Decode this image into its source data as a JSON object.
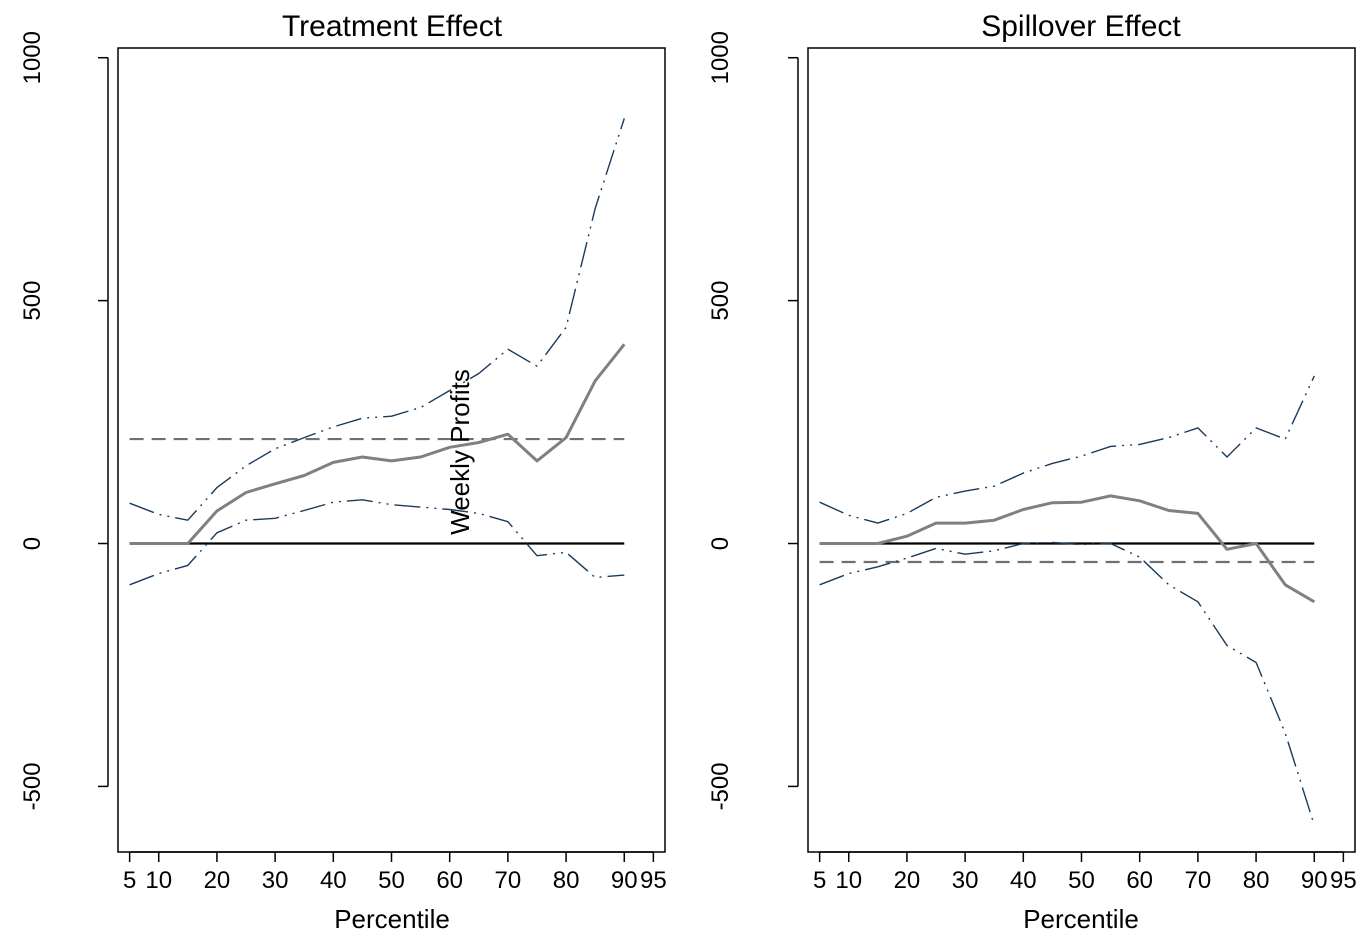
{
  "figure": {
    "shared_ylabel": "Weekly Profits"
  },
  "colors": {
    "estimate": "#808080",
    "ci_band": "#1a3a5c",
    "mean_effect": "#707070",
    "zero_line": "#000000"
  },
  "chart_data": [
    {
      "type": "line",
      "title": "Treatment Effect",
      "xlabel": "Percentile",
      "ylabel": "Weekly Profits",
      "x_ticks": [
        5,
        10,
        20,
        30,
        40,
        50,
        60,
        70,
        80,
        90,
        95
      ],
      "x_tick_labels": [
        "5",
        "10",
        "20",
        "30",
        "40",
        "50",
        "60",
        "70",
        "80",
        "90",
        "95"
      ],
      "y_ticks": [
        -500,
        0,
        500,
        1000
      ],
      "y_tick_labels": [
        "-500",
        "0",
        "500",
        "1000"
      ],
      "xlim": [
        3,
        97
      ],
      "ylim": [
        -635,
        1020
      ],
      "x": [
        5,
        10,
        15,
        20,
        25,
        30,
        35,
        40,
        45,
        50,
        55,
        60,
        65,
        70,
        75,
        80,
        85,
        90
      ],
      "series": [
        {
          "role": "estimate",
          "values": [
            0,
            0,
            0,
            67,
            105,
            123,
            140,
            167,
            178,
            170,
            178,
            198,
            208,
            225,
            170,
            218,
            335,
            410
          ]
        },
        {
          "role": "upper_ci",
          "values": [
            83,
            60,
            48,
            115,
            160,
            195,
            218,
            240,
            258,
            262,
            280,
            315,
            350,
            400,
            365,
            445,
            690,
            875
          ]
        },
        {
          "role": "lower_ci",
          "values": [
            -85,
            -62,
            -45,
            22,
            48,
            52,
            68,
            85,
            90,
            80,
            75,
            70,
            62,
            45,
            -25,
            -18,
            -70,
            -65
          ]
        }
      ],
      "reference_lines": [
        {
          "role": "mean_effect",
          "value": 215,
          "style": "dashed"
        },
        {
          "role": "zero",
          "value": 0,
          "style": "solid"
        }
      ],
      "grid": false,
      "legend": "none"
    },
    {
      "type": "line",
      "title": "Spillover Effect",
      "xlabel": "Percentile",
      "ylabel": "Weekly Profits",
      "x_ticks": [
        5,
        10,
        20,
        30,
        40,
        50,
        60,
        70,
        80,
        90,
        95
      ],
      "x_tick_labels": [
        "5",
        "10",
        "20",
        "30",
        "40",
        "50",
        "60",
        "70",
        "80",
        "90",
        "95"
      ],
      "y_ticks": [
        -500,
        0,
        500,
        1000
      ],
      "y_tick_labels": [
        "-500",
        "0",
        "500",
        "1000"
      ],
      "xlim": [
        3,
        97
      ],
      "ylim": [
        -635,
        1020
      ],
      "x": [
        5,
        10,
        15,
        20,
        25,
        30,
        35,
        40,
        45,
        50,
        55,
        60,
        65,
        70,
        75,
        80,
        85,
        90
      ],
      "series": [
        {
          "role": "estimate",
          "values": [
            0,
            0,
            0,
            15,
            42,
            42,
            48,
            70,
            84,
            85,
            98,
            88,
            68,
            62,
            -12,
            0,
            -85,
            -120
          ]
        },
        {
          "role": "upper_ci",
          "values": [
            85,
            58,
            42,
            62,
            95,
            108,
            118,
            145,
            165,
            180,
            200,
            204,
            218,
            238,
            178,
            238,
            215,
            345
          ]
        },
        {
          "role": "lower_ci",
          "values": [
            -85,
            -62,
            -48,
            -30,
            -10,
            -22,
            -15,
            0,
            2,
            -2,
            0,
            -28,
            -85,
            -120,
            -210,
            -245,
            -390,
            -580
          ]
        }
      ],
      "reference_lines": [
        {
          "role": "mean_effect",
          "value": -38,
          "style": "dashed"
        },
        {
          "role": "zero",
          "value": 0,
          "style": "solid"
        }
      ],
      "grid": false,
      "legend": "none"
    }
  ]
}
